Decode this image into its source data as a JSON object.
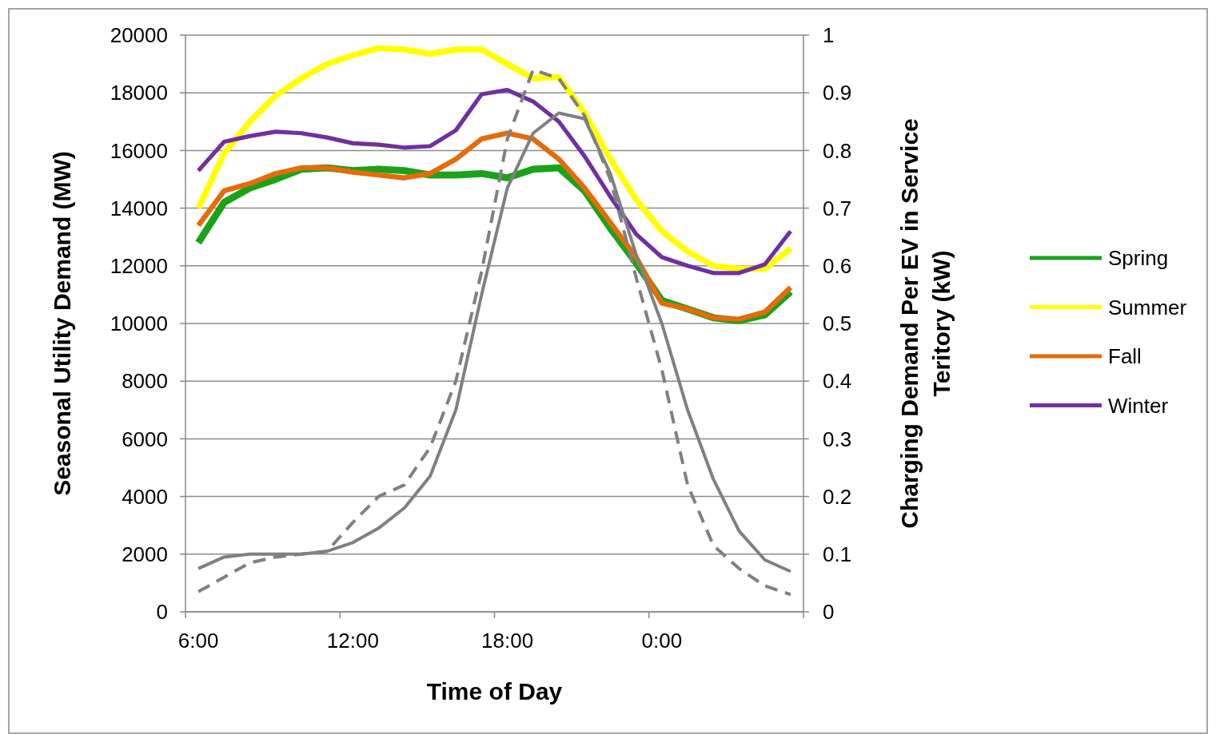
{
  "chart_data": {
    "type": "line",
    "xlabel": "Time of Day",
    "ylabel": "Seasonal Utility Demand (MW)",
    "y2label": "Charging Demand Per EV in Service Teritory (kW)",
    "categories": [
      "6:00",
      null,
      null,
      null,
      null,
      null,
      "12:00",
      null,
      null,
      null,
      null,
      null,
      "18:00",
      null,
      null,
      null,
      null,
      null,
      "0:00",
      null,
      null,
      null,
      null,
      null
    ],
    "ylim": [
      0,
      20000
    ],
    "yticks": [
      0,
      2000,
      4000,
      6000,
      8000,
      10000,
      12000,
      14000,
      16000,
      18000,
      20000
    ],
    "y2lim": [
      0,
      1
    ],
    "y2ticks": [
      0,
      0.1,
      0.2,
      0.3,
      0.4,
      0.5,
      0.6,
      0.7,
      0.8,
      0.9,
      1
    ],
    "grid": "y",
    "legend": "right",
    "marker": "none",
    "series": [
      {
        "name": "Spring",
        "color": "#1aa31a",
        "values": [
          12800,
          14200,
          14700,
          15000,
          15350,
          15400,
          15300,
          15350,
          15300,
          15150,
          15150,
          15200,
          15050,
          15350,
          15400,
          14600,
          13300,
          12100,
          10800,
          10500,
          10200,
          10100,
          10300,
          11100
        ]
      },
      {
        "name": "Summer",
        "color": "#ffff00",
        "values": [
          14000,
          15900,
          17000,
          17900,
          18500,
          19000,
          19300,
          19550,
          19500,
          19350,
          19500,
          19500,
          19000,
          18500,
          18550,
          17300,
          15700,
          14300,
          13200,
          12500,
          12000,
          11900,
          11900,
          12600
        ]
      },
      {
        "name": "Fall",
        "color": "#e46c0a",
        "values": [
          13400,
          14600,
          14850,
          15200,
          15400,
          15400,
          15250,
          15150,
          15050,
          15200,
          15700,
          16400,
          16600,
          16400,
          15700,
          14700,
          13500,
          12300,
          10700,
          10500,
          10200,
          10150,
          10400,
          11250
        ]
      },
      {
        "name": "Winter",
        "color": "#7030a0",
        "values": [
          15300,
          16300,
          16500,
          16650,
          16600,
          16450,
          16250,
          16200,
          16100,
          16150,
          16700,
          17950,
          18100,
          17700,
          17000,
          15800,
          14400,
          13100,
          12300,
          12000,
          11750,
          11750,
          12050,
          13200
        ]
      },
      {
        "color": "#808080",
        "axis": "y2",
        "line_style": "dashed",
        "values": [
          0.035,
          0.06,
          0.085,
          0.095,
          0.1,
          0.105,
          0.155,
          0.2,
          0.22,
          0.285,
          0.4,
          0.59,
          0.82,
          0.94,
          0.925,
          0.86,
          0.75,
          0.58,
          0.42,
          0.22,
          0.115,
          0.075,
          0.045,
          0.03
        ]
      },
      {
        "color": "#808080",
        "axis": "y2",
        "line_style": "solid",
        "values": [
          0.075,
          0.095,
          0.1,
          0.1,
          0.1,
          0.105,
          0.12,
          0.145,
          0.18,
          0.235,
          0.35,
          0.55,
          0.735,
          0.83,
          0.865,
          0.855,
          0.76,
          0.62,
          0.5,
          0.35,
          0.23,
          0.14,
          0.09,
          0.07
        ]
      }
    ]
  }
}
